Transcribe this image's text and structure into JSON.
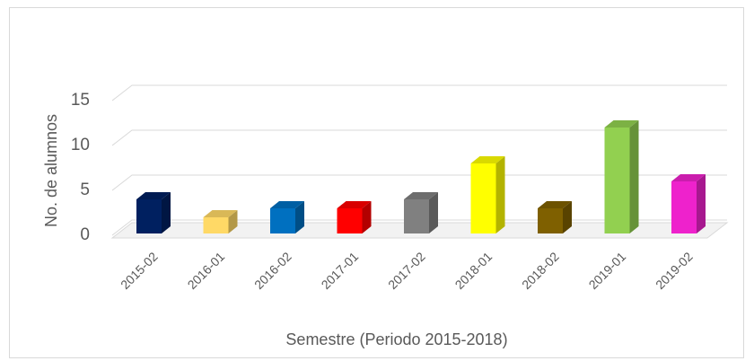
{
  "chart_data": {
    "type": "bar3d",
    "categories": [
      "2015-02",
      "2016-01",
      "2016-02",
      "2017-01",
      "2017-02",
      "2018-01",
      "2018-02",
      "2019-01",
      "2019-02"
    ],
    "values": [
      4,
      2,
      3,
      3,
      4,
      8,
      3,
      12,
      6
    ],
    "colors": [
      "#002060",
      "#ffd966",
      "#0070c0",
      "#ff0000",
      "#808080",
      "#ffff00",
      "#7f6000",
      "#92d050",
      "#ee22cc"
    ],
    "x_label": "Semestre (Periodo 2015-2018)",
    "y_label": "No. de alumnos",
    "ylim": [
      0,
      15
    ],
    "yticks": [
      0,
      5,
      10,
      15
    ],
    "grid": true
  }
}
